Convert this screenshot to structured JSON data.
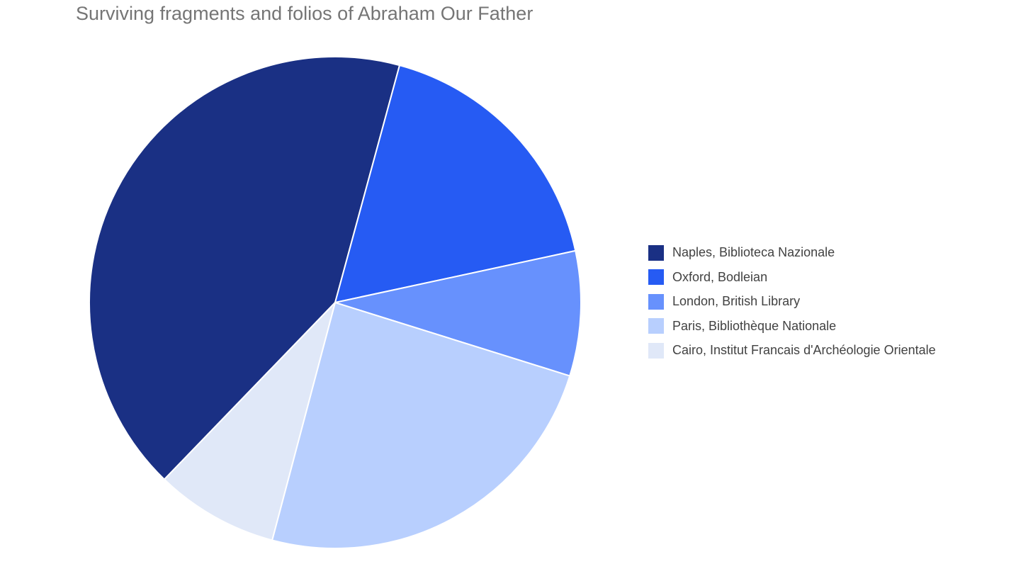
{
  "chart_data": {
    "type": "pie",
    "title": "Surviving fragments and folios of Abraham Our Father",
    "categories": [
      "Naples, Biblioteca Nazionale",
      "Oxford, Bodleian",
      "London, British Library",
      "Paris, Bibliothèque Nationale",
      "Cairo, Institut Francais d'Archéologie Orientale"
    ],
    "values": [
      42,
      17.4,
      8.2,
      24.3,
      8.1
    ],
    "colors": [
      "#1a3084",
      "#265bf3",
      "#6791fd",
      "#b8cffe",
      "#e0e8f8"
    ],
    "legend_position": "right"
  }
}
